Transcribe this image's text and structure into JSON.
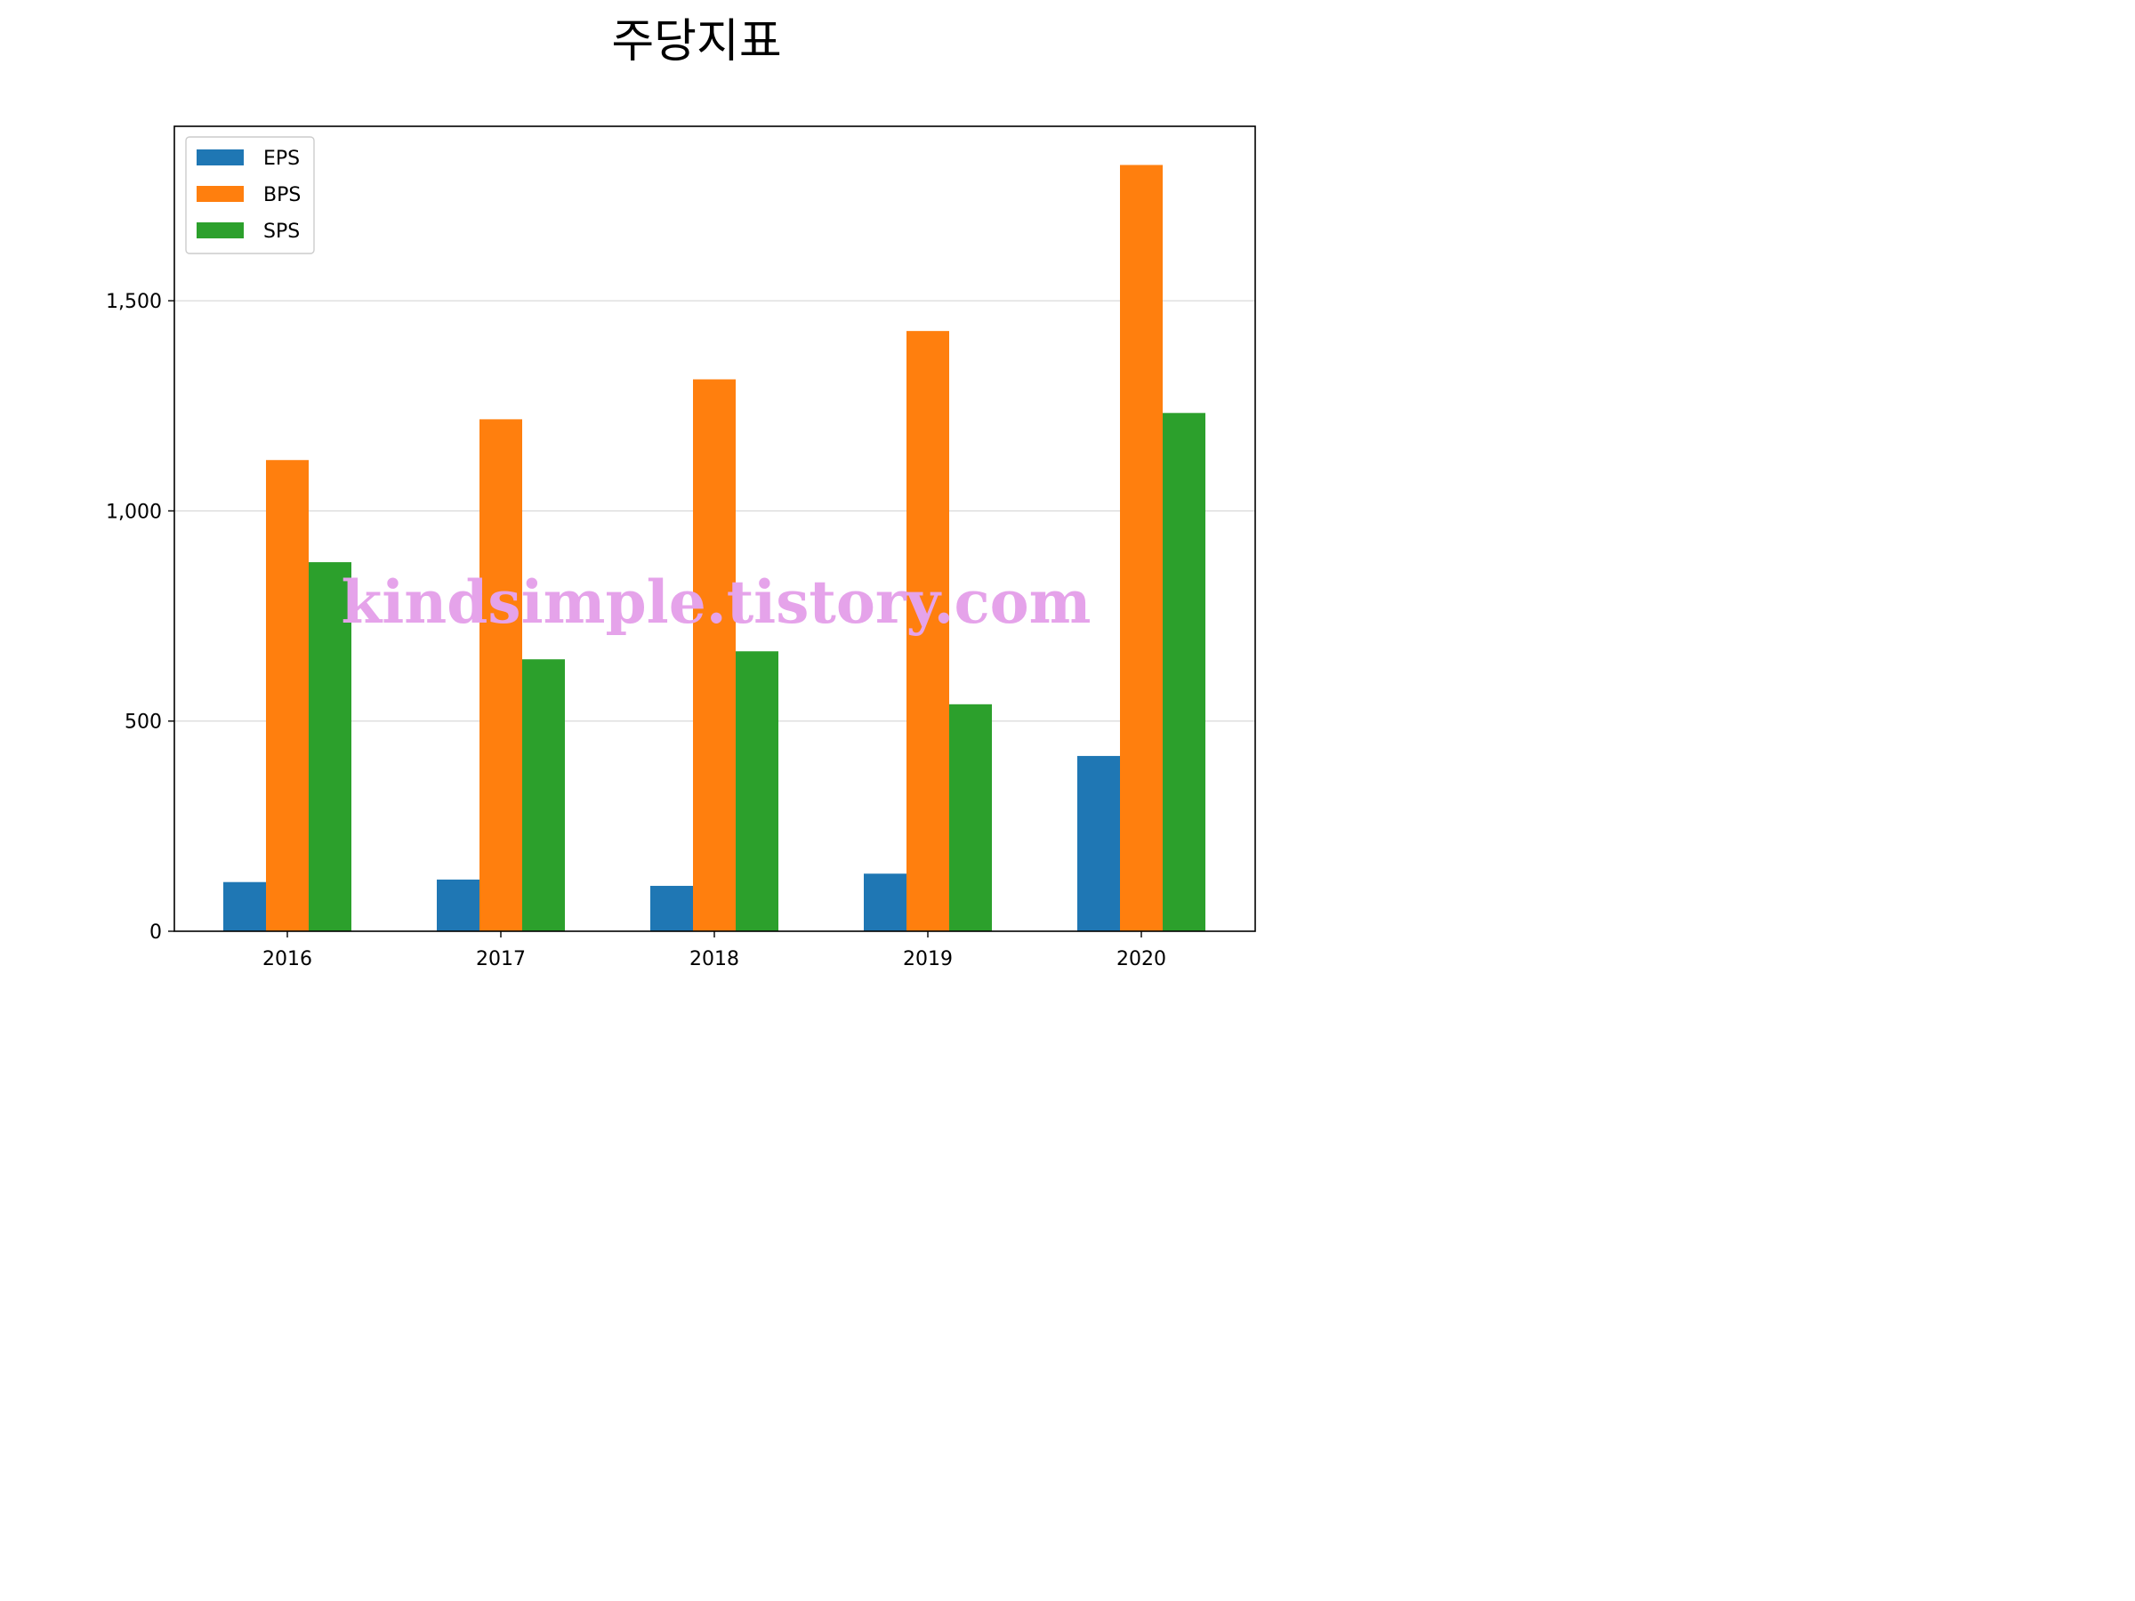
{
  "chart_data": {
    "type": "bar",
    "title": "주당지표",
    "xlabel": "",
    "ylabel": "",
    "categories": [
      "2016",
      "2017",
      "2018",
      "2019",
      "2020"
    ],
    "series": [
      {
        "name": "EPS",
        "color": "#1f77b4",
        "values": [
          117,
          123,
          108,
          137,
          417
        ]
      },
      {
        "name": "BPS",
        "color": "#ff7f0e",
        "values": [
          1121,
          1218,
          1313,
          1428,
          1823
        ]
      },
      {
        "name": "SPS",
        "color": "#2ca02c",
        "values": [
          878,
          647,
          666,
          540,
          1233
        ]
      }
    ],
    "ylim": [
      0,
      1915
    ],
    "yticks": [
      0,
      500,
      1000,
      1500
    ],
    "ytick_labels": [
      "0",
      "500",
      "1,000",
      "1,500"
    ],
    "grid": "horizontal",
    "legend_position": "top-left"
  },
  "watermark": "kindsimple.tistory.com"
}
